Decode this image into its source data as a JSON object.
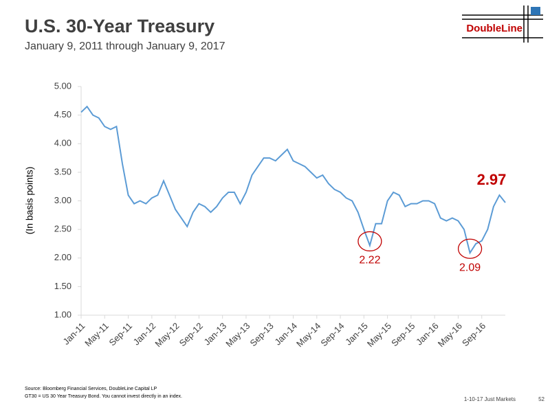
{
  "chart_data": {
    "type": "line",
    "title": "U.S. 30-Year Treasury",
    "subtitle": "January 9, 2011 through January 9, 2017",
    "ylabel": "(In basis points)",
    "logo": "DoubleLine",
    "source": "Source: Bloomberg Financial Services, DoubleLine Capital LP",
    "note": "GT30 = US 30 Year Treasury Bond. You cannot invest directly in an index.",
    "footer": "1-10-17 Just Markets",
    "page": "52",
    "categories": [
      "Jan-11",
      null,
      null,
      null,
      "May-11",
      null,
      null,
      null,
      "Sep-11",
      null,
      null,
      null,
      "Jan-12",
      null,
      null,
      null,
      "May-12",
      null,
      null,
      null,
      "Sep-12",
      null,
      null,
      null,
      "Jan-13",
      null,
      null,
      null,
      "May-13",
      null,
      null,
      null,
      "Sep-13",
      null,
      null,
      null,
      "Jan-14",
      null,
      null,
      null,
      "May-14",
      null,
      null,
      null,
      "Sep-14",
      null,
      null,
      null,
      "Jan-15",
      null,
      null,
      null,
      "May-15",
      null,
      null,
      null,
      "Sep-15",
      null,
      null,
      null,
      "Jan-16",
      null,
      null,
      null,
      "May-16",
      null,
      null,
      null,
      "Sep-16",
      null,
      null,
      null,
      null
    ],
    "series": [
      {
        "name": "GT30",
        "color": "#5b9bd5",
        "values": [
          4.55,
          4.65,
          4.5,
          4.45,
          4.3,
          4.25,
          4.3,
          3.65,
          3.1,
          2.95,
          3.0,
          2.95,
          3.05,
          3.1,
          3.35,
          3.1,
          2.85,
          2.7,
          2.55,
          2.8,
          2.95,
          2.9,
          2.8,
          2.9,
          3.05,
          3.15,
          3.15,
          2.95,
          3.15,
          3.45,
          3.6,
          3.75,
          3.75,
          3.7,
          3.8,
          3.9,
          3.7,
          3.65,
          3.6,
          3.5,
          3.4,
          3.45,
          3.3,
          3.2,
          3.15,
          3.05,
          3.0,
          2.8,
          2.5,
          2.22,
          2.6,
          2.6,
          3.0,
          3.15,
          3.1,
          2.9,
          2.95,
          2.95,
          3.0,
          3.0,
          2.95,
          2.7,
          2.65,
          2.7,
          2.65,
          2.5,
          2.09,
          2.25,
          2.3,
          2.5,
          2.9,
          3.1,
          2.97
        ]
      }
    ],
    "callouts": [
      2.22,
      2.09
    ],
    "end_label": 2.97,
    "annotation_color": "#c00000",
    "ylim": [
      1,
      5
    ],
    "yticks": [
      {
        "value": 1,
        "label": "1.00"
      },
      {
        "value": 1.5,
        "label": "1.50"
      },
      {
        "value": 2,
        "label": "2.00"
      },
      {
        "value": 2.5,
        "label": "2.50"
      },
      {
        "value": 3,
        "label": "3.00"
      },
      {
        "value": 3.5,
        "label": "3.50"
      },
      {
        "value": 4,
        "label": "4.00"
      },
      {
        "value": 4.5,
        "label": "4.50"
      },
      {
        "value": 5,
        "label": "5.00"
      }
    ],
    "grid": false
  }
}
